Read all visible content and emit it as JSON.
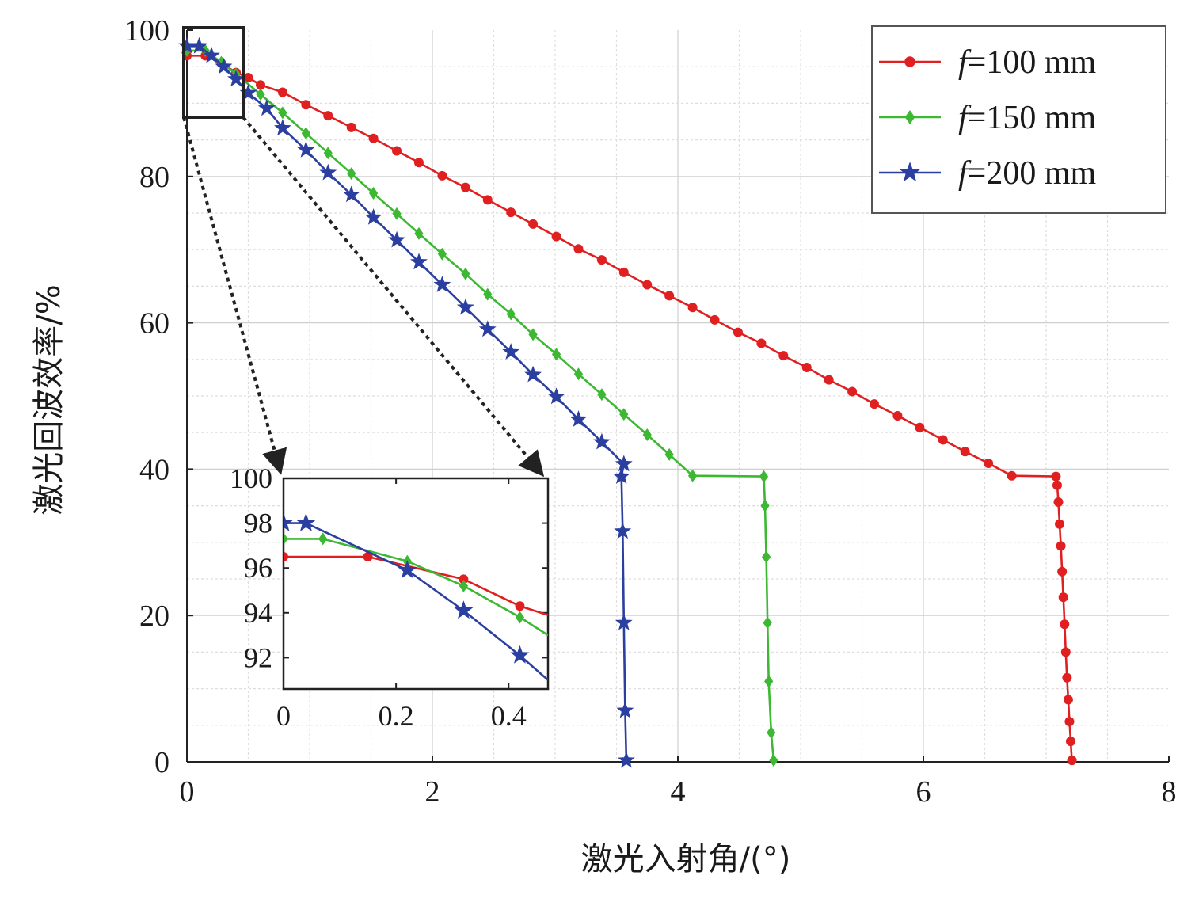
{
  "chart_data": [
    {
      "type": "line",
      "xlabel": "激光入射角/(°)",
      "ylabel": "激光回波效率/%",
      "xlim": [
        0,
        8
      ],
      "ylim": [
        0,
        100
      ],
      "xticks": [
        "0",
        "2",
        "4",
        "6",
        "8"
      ],
      "yticks": [
        "0",
        "20",
        "40",
        "60",
        "80",
        "100"
      ],
      "grid": true,
      "legend_position": "top-right",
      "series": [
        {
          "name": "f=100 mm",
          "legend_prefix": "f",
          "legend_suffix": "=100 mm",
          "color": "#e02020",
          "marker": "circle",
          "points": [
            [
              0,
              96.5
            ],
            [
              0.15,
              96.5
            ],
            [
              0.28,
              95.5
            ],
            [
              0.4,
              94.2
            ],
            [
              0.5,
              93.5
            ],
            [
              0.6,
              92.5
            ],
            [
              0.78,
              91.5
            ],
            [
              0.97,
              89.8
            ],
            [
              1.15,
              88.3
            ],
            [
              1.34,
              86.7
            ],
            [
              1.52,
              85.2
            ],
            [
              1.71,
              83.5
            ],
            [
              1.89,
              81.9
            ],
            [
              2.08,
              80.1
            ],
            [
              2.27,
              78.5
            ],
            [
              2.45,
              76.8
            ],
            [
              2.64,
              75.1
            ],
            [
              2.82,
              73.5
            ],
            [
              3.01,
              71.8
            ],
            [
              3.19,
              70.1
            ],
            [
              3.38,
              68.6
            ],
            [
              3.56,
              66.9
            ],
            [
              3.75,
              65.2
            ],
            [
              3.93,
              63.7
            ],
            [
              4.12,
              62.1
            ],
            [
              4.3,
              60.4
            ],
            [
              4.49,
              58.7
            ],
            [
              4.68,
              57.2
            ],
            [
              4.86,
              55.5
            ],
            [
              5.05,
              53.9
            ],
            [
              5.23,
              52.2
            ],
            [
              5.42,
              50.6
            ],
            [
              5.6,
              48.9
            ],
            [
              5.79,
              47.3
            ],
            [
              5.97,
              45.7
            ],
            [
              6.16,
              44.0
            ],
            [
              6.34,
              42.4
            ],
            [
              6.53,
              40.8
            ],
            [
              6.72,
              39.1
            ],
            [
              7.08,
              39.0
            ],
            [
              7.09,
              37.8
            ],
            [
              7.1,
              35.5
            ],
            [
              7.11,
              32.5
            ],
            [
              7.12,
              29.5
            ],
            [
              7.13,
              26.0
            ],
            [
              7.14,
              22.5
            ],
            [
              7.15,
              18.8
            ],
            [
              7.16,
              15.0
            ],
            [
              7.17,
              11.5
            ],
            [
              7.18,
              8.5
            ],
            [
              7.19,
              5.5
            ],
            [
              7.2,
              2.8
            ],
            [
              7.21,
              0.2
            ]
          ]
        },
        {
          "name": "f=150 mm",
          "legend_prefix": "f",
          "legend_suffix": "=150 mm",
          "color": "#3cb832",
          "marker": "diamond",
          "points": [
            [
              0,
              97.2
            ],
            [
              0.15,
              97.2
            ],
            [
              0.28,
              95.6
            ],
            [
              0.4,
              94.0
            ],
            [
              0.6,
              91.2
            ],
            [
              0.78,
              88.7
            ],
            [
              0.97,
              85.9
            ],
            [
              1.15,
              83.2
            ],
            [
              1.34,
              80.4
            ],
            [
              1.52,
              77.7
            ],
            [
              1.71,
              74.9
            ],
            [
              1.89,
              72.2
            ],
            [
              2.08,
              69.4
            ],
            [
              2.27,
              66.7
            ],
            [
              2.45,
              63.9
            ],
            [
              2.64,
              61.2
            ],
            [
              2.82,
              58.4
            ],
            [
              3.01,
              55.7
            ],
            [
              3.19,
              53.0
            ],
            [
              3.38,
              50.2
            ],
            [
              3.56,
              47.5
            ],
            [
              3.75,
              44.7
            ],
            [
              3.93,
              42.0
            ],
            [
              4.12,
              39.1
            ],
            [
              4.7,
              39.0
            ],
            [
              4.71,
              35.0
            ],
            [
              4.72,
              28.0
            ],
            [
              4.73,
              19.0
            ],
            [
              4.74,
              11.0
            ],
            [
              4.76,
              4.0
            ],
            [
              4.78,
              0.2
            ]
          ]
        },
        {
          "name": "f=200 mm",
          "legend_prefix": "f",
          "legend_suffix": "=200 mm",
          "color": "#2a3fa0",
          "marker": "star",
          "points": [
            [
              0,
              97.8
            ],
            [
              0.1,
              97.8
            ],
            [
              0.2,
              96.5
            ],
            [
              0.3,
              95.0
            ],
            [
              0.4,
              93.3
            ],
            [
              0.5,
              91.4
            ],
            [
              0.65,
              89.3
            ],
            [
              0.78,
              86.6
            ],
            [
              0.97,
              83.6
            ],
            [
              1.15,
              80.5
            ],
            [
              1.34,
              77.5
            ],
            [
              1.52,
              74.4
            ],
            [
              1.71,
              71.3
            ],
            [
              1.89,
              68.3
            ],
            [
              2.08,
              65.2
            ],
            [
              2.27,
              62.1
            ],
            [
              2.45,
              59.1
            ],
            [
              2.64,
              56.0
            ],
            [
              2.82,
              52.9
            ],
            [
              3.01,
              49.9
            ],
            [
              3.19,
              46.8
            ],
            [
              3.38,
              43.7
            ],
            [
              3.56,
              40.7
            ],
            [
              3.54,
              39.0
            ],
            [
              3.55,
              31.5
            ],
            [
              3.56,
              19.0
            ],
            [
              3.57,
              7.0
            ],
            [
              3.58,
              0.2
            ]
          ]
        }
      ]
    },
    {
      "type": "line",
      "role": "inset-zoom",
      "xlim": [
        0,
        0.47
      ],
      "ylim": [
        90.6,
        100
      ],
      "xticks": [
        "0",
        "0.2",
        "0.4"
      ],
      "yticks": [
        "92",
        "94",
        "96",
        "98",
        "100"
      ],
      "series": [
        {
          "name": "f=100 mm",
          "color": "#e02020",
          "marker": "circle",
          "points": [
            [
              0,
              96.5
            ],
            [
              0.15,
              96.5
            ],
            [
              0.32,
              95.5
            ],
            [
              0.42,
              94.3
            ],
            [
              0.47,
              93.9
            ]
          ]
        },
        {
          "name": "f=150 mm",
          "color": "#3cb832",
          "marker": "diamond",
          "points": [
            [
              0,
              97.3
            ],
            [
              0.07,
              97.3
            ],
            [
              0.22,
              96.3
            ],
            [
              0.32,
              95.2
            ],
            [
              0.42,
              93.8
            ],
            [
              0.47,
              93.0
            ]
          ]
        },
        {
          "name": "f=200 mm",
          "color": "#2a3fa0",
          "marker": "star",
          "points": [
            [
              0,
              98.0
            ],
            [
              0.04,
              98.0
            ],
            [
              0.22,
              95.9
            ],
            [
              0.32,
              94.1
            ],
            [
              0.42,
              92.1
            ],
            [
              0.47,
              91.0
            ]
          ]
        }
      ]
    }
  ]
}
